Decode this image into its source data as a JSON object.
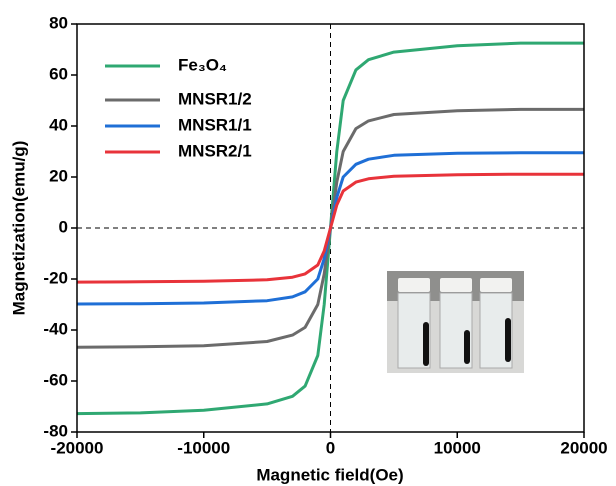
{
  "chart_data": {
    "type": "line",
    "x_label": "Magnetic field(Oe)",
    "y_label": "Magnetization(emu/g)",
    "x": [
      -20000,
      -15000,
      -10000,
      -5000,
      -3000,
      -2000,
      -1000,
      -500,
      0,
      500,
      1000,
      2000,
      3000,
      5000,
      10000,
      15000,
      20000
    ],
    "series": [
      {
        "name": "Fe₃O₄",
        "color": "#2fa872",
        "values": [
          -72.8,
          -72.5,
          -71.5,
          -69,
          -66,
          -62,
          -50,
          -30,
          0,
          30,
          50,
          62,
          66,
          69,
          71.5,
          72.5,
          72.5
        ]
      },
      {
        "name": "MNSR1/2",
        "color": "#6b6b6b",
        "values": [
          -46.8,
          -46.6,
          -46.2,
          -44.5,
          -42,
          -39,
          -30,
          -18,
          0,
          18,
          30,
          39,
          42,
          44.5,
          46,
          46.5,
          46.5
        ]
      },
      {
        "name": "MNSR1/1",
        "color": "#1f6fd6",
        "values": [
          -29.8,
          -29.7,
          -29.4,
          -28.5,
          -27,
          -25,
          -20,
          -12,
          0,
          12,
          20,
          25,
          27,
          28.5,
          29.3,
          29.5,
          29.5
        ]
      },
      {
        "name": "MNSR2/1",
        "color": "#e8333a",
        "values": [
          -21.2,
          -21.1,
          -20.9,
          -20.3,
          -19.3,
          -18,
          -14.5,
          -9,
          0,
          9,
          14.5,
          18,
          19.3,
          20.3,
          20.9,
          21.1,
          21.1
        ]
      }
    ],
    "xlim": [
      -20000,
      20000
    ],
    "ylim": [
      -80,
      80
    ],
    "xticks": [
      -20000,
      -10000,
      0,
      10000,
      20000
    ],
    "yticks": [
      -80,
      -60,
      -40,
      -20,
      0,
      20,
      40,
      60,
      80
    ],
    "legend": "upper left"
  }
}
